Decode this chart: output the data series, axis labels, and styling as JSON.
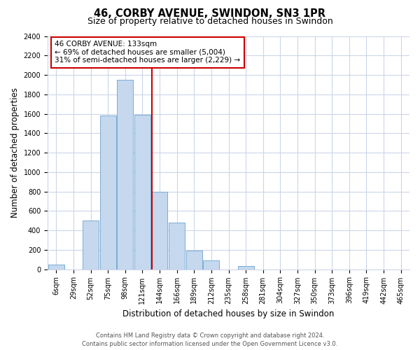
{
  "title": "46, CORBY AVENUE, SWINDON, SN3 1PR",
  "subtitle": "Size of property relative to detached houses in Swindon",
  "xlabel": "Distribution of detached houses by size in Swindon",
  "ylabel": "Number of detached properties",
  "bar_labels": [
    "6sqm",
    "29sqm",
    "52sqm",
    "75sqm",
    "98sqm",
    "121sqm",
    "144sqm",
    "166sqm",
    "189sqm",
    "212sqm",
    "235sqm",
    "258sqm",
    "281sqm",
    "304sqm",
    "327sqm",
    "350sqm",
    "373sqm",
    "396sqm",
    "419sqm",
    "442sqm",
    "465sqm"
  ],
  "bar_values": [
    50,
    0,
    500,
    1580,
    1950,
    1590,
    800,
    480,
    190,
    90,
    0,
    30,
    0,
    0,
    0,
    0,
    0,
    0,
    0,
    0,
    0
  ],
  "bar_color": "#c5d8ee",
  "bar_edge_color": "#7aadd4",
  "vline_x_index": 6,
  "vline_color": "#cc0000",
  "annotation_title": "46 CORBY AVENUE: 133sqm",
  "annotation_line1": "← 69% of detached houses are smaller (5,004)",
  "annotation_line2": "31% of semi-detached houses are larger (2,229) →",
  "annotation_box_color": "#ffffff",
  "annotation_box_edge": "#cc0000",
  "ylim": [
    0,
    2400
  ],
  "yticks": [
    0,
    200,
    400,
    600,
    800,
    1000,
    1200,
    1400,
    1600,
    1800,
    2000,
    2200,
    2400
  ],
  "footer1": "Contains HM Land Registry data © Crown copyright and database right 2024.",
  "footer2": "Contains public sector information licensed under the Open Government Licence v3.0.",
  "bg_color": "#ffffff",
  "grid_color": "#ccd6e8",
  "title_fontsize": 10.5,
  "subtitle_fontsize": 9,
  "axis_label_fontsize": 8.5,
  "tick_fontsize": 7,
  "footer_fontsize": 6,
  "annotation_fontsize": 7.5
}
